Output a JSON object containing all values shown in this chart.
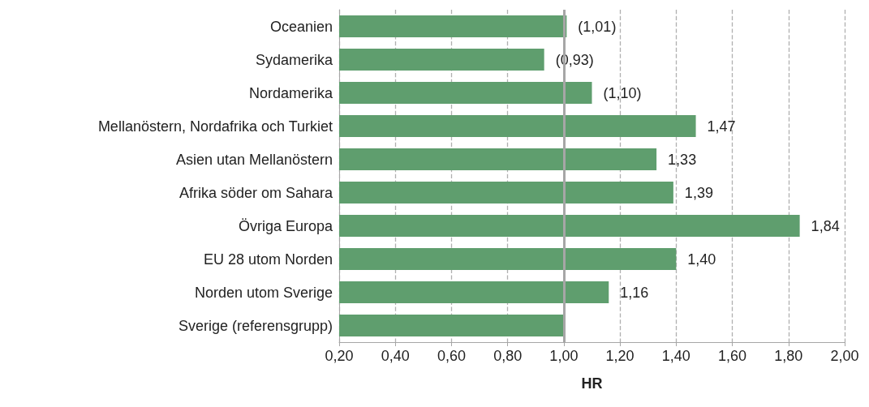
{
  "chart_data": {
    "type": "bar",
    "orientation": "horizontal",
    "xlabel": "HR",
    "categories": [
      "Oceanien",
      "Sydamerika",
      "Nordamerika",
      "Mellanöstern, Nordafrika och Turkiet",
      "Asien utan Mellanöstern",
      "Afrika söder om Sahara",
      "Övriga Europa",
      "EU 28 utom Norden",
      "Norden utom Sverige",
      "Sverige (referensgrupp)"
    ],
    "values": [
      1.01,
      0.93,
      1.1,
      1.47,
      1.33,
      1.39,
      1.84,
      1.4,
      1.16,
      1.0
    ],
    "value_labels": [
      "(1,01)",
      "(0,93)",
      "(1,10)",
      "1,47",
      "1,33",
      "1,39",
      "1,84",
      "1,40",
      "1,16",
      null
    ],
    "color": "#5f9e6e",
    "xlim": [
      0.2,
      2.0
    ],
    "xticks": [
      {
        "value": 0.2,
        "label": "0,20"
      },
      {
        "value": 0.4,
        "label": "0,40"
      },
      {
        "value": 0.6,
        "label": "0,60"
      },
      {
        "value": 0.8,
        "label": "0,80"
      },
      {
        "value": 1.0,
        "label": "1,00"
      },
      {
        "value": 1.2,
        "label": "1,20"
      },
      {
        "value": 1.4,
        "label": "1,40"
      },
      {
        "value": 1.6,
        "label": "1,60"
      },
      {
        "value": 1.8,
        "label": "1,80"
      },
      {
        "value": 2.0,
        "label": "2,00"
      }
    ],
    "grid": "x",
    "ref_lines": [
      {
        "axis": "x",
        "value": 1.0,
        "color": "#a6a6a6",
        "line_style": "solid"
      }
    ]
  }
}
